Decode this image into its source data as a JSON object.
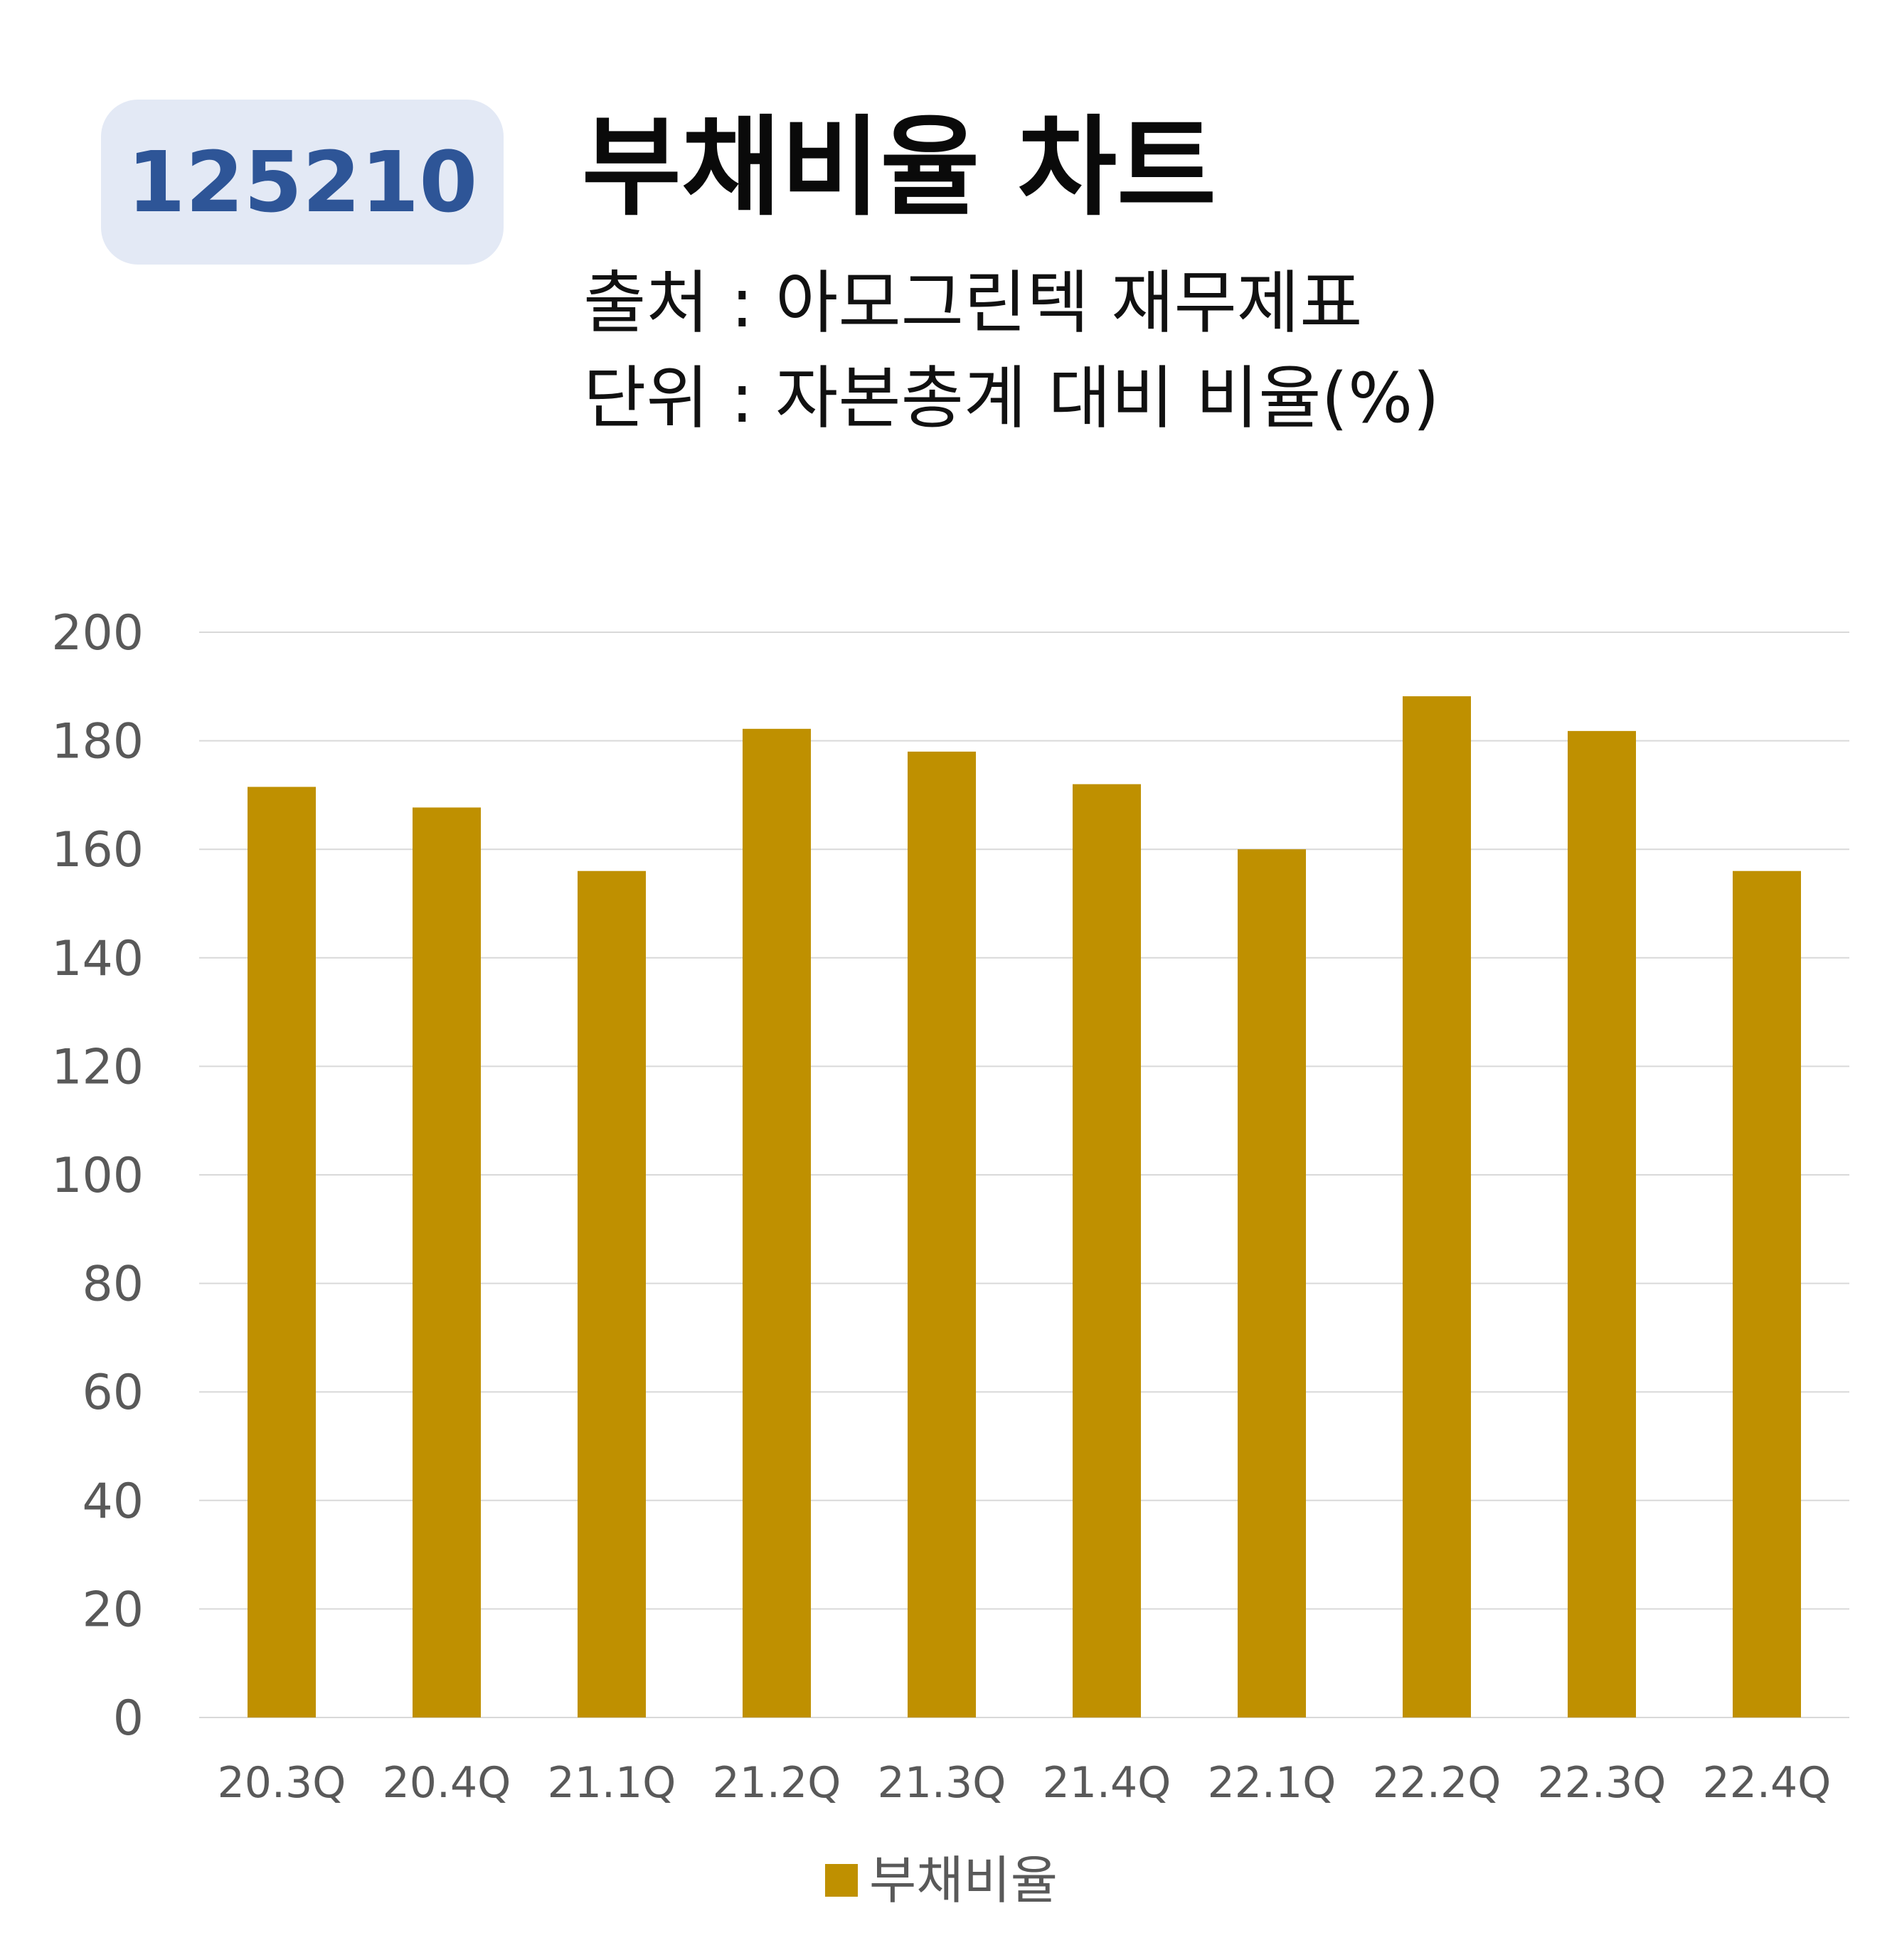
{
  "header": {
    "code": "125210",
    "title": "부채비율 차트",
    "source": "출처 : 아모그린텍 재무제표",
    "unit": "단위 : 자본총계 대비 비율(%)"
  },
  "legend": {
    "label": "부채비율"
  },
  "colors": {
    "bar": "#bf9000",
    "badge_bg": "#e3e9f5",
    "badge_text": "#2e5597",
    "grid": "#d9d9d9",
    "axis_text": "#595959"
  },
  "chart_data": {
    "type": "bar",
    "title": "부채비율 차트",
    "categories": [
      "20.3Q",
      "20.4Q",
      "21.1Q",
      "21.2Q",
      "21.3Q",
      "21.4Q",
      "22.1Q",
      "22.2Q",
      "22.3Q",
      "22.4Q"
    ],
    "series": [
      {
        "name": "부채비율",
        "values": [
          171.5,
          167.7,
          156,
          182.2,
          178,
          172,
          160,
          188.2,
          181.8,
          156
        ]
      }
    ],
    "ylim": [
      0,
      200
    ],
    "yticks": [
      0,
      20,
      40,
      60,
      80,
      100,
      120,
      140,
      160,
      180,
      200
    ],
    "grid": true,
    "legend_position": "bottom"
  }
}
